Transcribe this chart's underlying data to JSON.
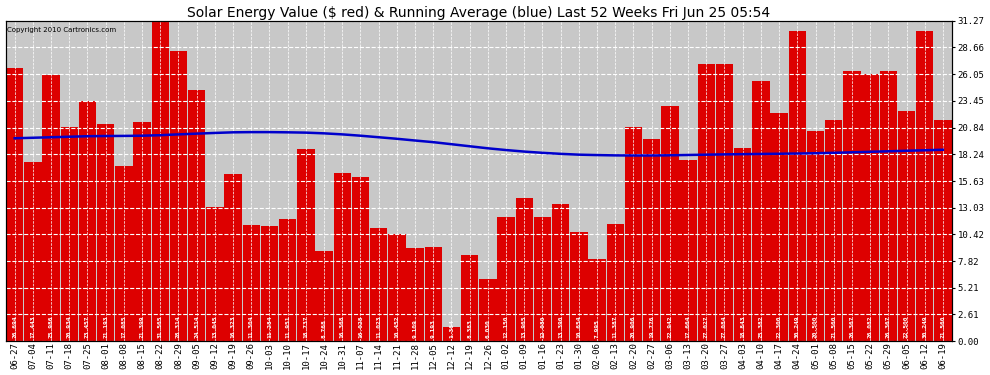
{
  "title": "Solar Energy Value ($ red) & Running Average (blue) Last 52 Weeks Fri Jun 25 05:54",
  "copyright": "Copyright 2010 Cartronics.com",
  "bar_color": "#dd0000",
  "line_color": "#0000cc",
  "background_color": "#ffffff",
  "plot_bg_color": "#c8c8c8",
  "grid_color": "#ffffff",
  "ylabel_right": [
    "31.27",
    "28.66",
    "26.05",
    "23.45",
    "20.84",
    "18.24",
    "15.63",
    "13.03",
    "10.42",
    "7.82",
    "5.21",
    "2.61",
    "0.00"
  ],
  "yticks": [
    31.27,
    28.66,
    26.05,
    23.45,
    20.84,
    18.24,
    15.63,
    13.03,
    10.42,
    7.82,
    5.21,
    2.61,
    0.0
  ],
  "categories": [
    "06-27",
    "07-04",
    "07-11",
    "07-18",
    "07-25",
    "08-01",
    "08-08",
    "08-15",
    "08-22",
    "08-29",
    "09-05",
    "09-12",
    "09-19",
    "09-26",
    "10-03",
    "10-10",
    "10-17",
    "10-24",
    "10-31",
    "11-07",
    "11-14",
    "11-21",
    "11-28",
    "12-05",
    "12-12",
    "12-19",
    "12-26",
    "01-02",
    "01-09",
    "01-16",
    "01-23",
    "01-30",
    "02-06",
    "02-13",
    "02-20",
    "02-27",
    "03-06",
    "03-13",
    "03-20",
    "03-27",
    "04-03",
    "04-10",
    "04-17",
    "04-24",
    "05-01",
    "05-08",
    "05-15",
    "05-22",
    "05-29",
    "06-05",
    "06-12",
    "06-19"
  ],
  "values": [
    26.694,
    17.443,
    25.986,
    20.934,
    23.457,
    21.193,
    17.085,
    21.399,
    31.565,
    28.314,
    24.514,
    13.045,
    16.323,
    11.304,
    11.284,
    11.951,
    18.737,
    8.768,
    16.368,
    16.028,
    11.023,
    10.452,
    9.109,
    9.193,
    1.364,
    8.383,
    6.03,
    12.15,
    13.965,
    12.08,
    13.39,
    10.654,
    7.995,
    11.387,
    20.906,
    19.776,
    22.942,
    17.664,
    27.027,
    27.084,
    18.843,
    25.382,
    22.3,
    30.249,
    20.5,
    21.56,
    26.367,
    26.082,
    26.367,
    22.5,
    30.249,
    21.56
  ],
  "running_avg": [
    19.8,
    19.85,
    19.9,
    19.95,
    20.0,
    20.02,
    20.03,
    20.05,
    20.1,
    20.18,
    20.25,
    20.32,
    20.38,
    20.4,
    20.4,
    20.38,
    20.35,
    20.28,
    20.18,
    20.05,
    19.9,
    19.75,
    19.58,
    19.42,
    19.22,
    19.02,
    18.82,
    18.65,
    18.5,
    18.38,
    18.28,
    18.2,
    18.16,
    18.13,
    18.12,
    18.12,
    18.14,
    18.17,
    18.2,
    18.23,
    18.25,
    18.27,
    18.29,
    18.31,
    18.34,
    18.38,
    18.43,
    18.48,
    18.53,
    18.58,
    18.63,
    18.68
  ],
  "ylim": [
    0,
    31.27
  ],
  "title_fontsize": 10,
  "tick_fontsize": 6.5,
  "bar_width": 0.95,
  "label_fontsize": 4.5
}
